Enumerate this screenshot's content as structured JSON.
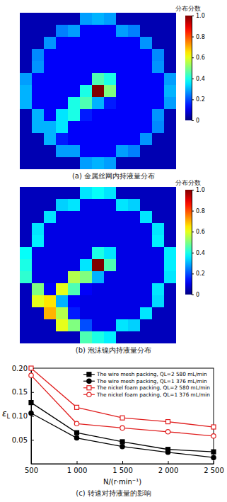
{
  "chart_data": [
    {
      "type": "heatmap",
      "title": "(a) 金属丝网内持液量分布",
      "colorbar": {
        "title": "分布分数",
        "range": [
          0,
          1
        ],
        "ticks": [
          0,
          0.2,
          0.4,
          0.6,
          0.8,
          {
            "value": 1,
            "label": "1.0"
          }
        ]
      },
      "cells": [
        [
          0.05,
          0.05,
          0.05,
          0.05,
          0.05,
          0.28,
          0.3,
          0.28,
          0.05,
          0.05,
          0.05,
          0.05,
          0.05
        ],
        [
          0.05,
          0.05,
          0.05,
          0.25,
          0.28,
          0.12,
          0.12,
          0.12,
          0.28,
          0.25,
          0.05,
          0.05,
          0.05
        ],
        [
          0.05,
          0.05,
          0.27,
          0.12,
          0.12,
          0.12,
          0.12,
          0.12,
          0.12,
          0.12,
          0.27,
          0.05,
          0.05
        ],
        [
          0.05,
          0.26,
          0.12,
          0.12,
          0.12,
          0.12,
          0.12,
          0.12,
          0.12,
          0.12,
          0.12,
          0.26,
          0.05
        ],
        [
          0.05,
          0.27,
          0.12,
          0.12,
          0.12,
          0.12,
          0.12,
          0.12,
          0.12,
          0.12,
          0.12,
          0.27,
          0.05
        ],
        [
          0.28,
          0.12,
          0.12,
          0.12,
          0.12,
          0.12,
          0.45,
          0.4,
          0.12,
          0.12,
          0.12,
          0.12,
          0.28
        ],
        [
          0.3,
          0.12,
          0.12,
          0.12,
          0.12,
          0.4,
          1.0,
          0.5,
          0.12,
          0.12,
          0.12,
          0.12,
          0.3
        ],
        [
          0.3,
          0.12,
          0.12,
          0.12,
          0.4,
          0.45,
          0.3,
          0.15,
          0.12,
          0.12,
          0.12,
          0.12,
          0.28
        ],
        [
          0.05,
          0.3,
          0.12,
          0.35,
          0.4,
          0.15,
          0.12,
          0.12,
          0.12,
          0.12,
          0.12,
          0.27,
          0.05
        ],
        [
          0.05,
          0.3,
          0.3,
          0.35,
          0.12,
          0.12,
          0.12,
          0.12,
          0.12,
          0.12,
          0.12,
          0.26,
          0.05
        ],
        [
          0.05,
          0.05,
          0.3,
          0.15,
          0.12,
          0.12,
          0.12,
          0.12,
          0.12,
          0.12,
          0.27,
          0.05,
          0.05
        ],
        [
          0.05,
          0.05,
          0.05,
          0.28,
          0.28,
          0.12,
          0.12,
          0.12,
          0.28,
          0.25,
          0.05,
          0.05,
          0.05
        ],
        [
          0.05,
          0.05,
          0.05,
          0.05,
          0.05,
          0.28,
          0.3,
          0.28,
          0.05,
          0.05,
          0.05,
          0.05,
          0.05
        ]
      ]
    },
    {
      "type": "heatmap",
      "title": "(b) 泡沫镍内持液量分布",
      "colorbar": {
        "title": "分布分数",
        "range": [
          0,
          1
        ],
        "ticks": [
          0,
          0.2,
          0.4,
          0.6,
          0.8,
          {
            "value": 1,
            "label": "1.0"
          }
        ]
      },
      "cells": [
        [
          0.06,
          0.06,
          0.06,
          0.06,
          0.06,
          0.35,
          0.38,
          0.35,
          0.06,
          0.06,
          0.06,
          0.06,
          0.06
        ],
        [
          0.06,
          0.06,
          0.06,
          0.33,
          0.35,
          0.1,
          0.1,
          0.1,
          0.35,
          0.33,
          0.06,
          0.06,
          0.06
        ],
        [
          0.06,
          0.06,
          0.35,
          0.1,
          0.1,
          0.1,
          0.1,
          0.1,
          0.1,
          0.1,
          0.35,
          0.06,
          0.06
        ],
        [
          0.06,
          0.35,
          0.1,
          0.1,
          0.1,
          0.1,
          0.1,
          0.1,
          0.1,
          0.1,
          0.1,
          0.35,
          0.06
        ],
        [
          0.06,
          0.36,
          0.1,
          0.1,
          0.1,
          0.1,
          0.1,
          0.1,
          0.1,
          0.1,
          0.1,
          0.36,
          0.06
        ],
        [
          0.38,
          0.1,
          0.1,
          0.1,
          0.1,
          0.1,
          0.4,
          0.35,
          0.1,
          0.1,
          0.1,
          0.1,
          0.36
        ],
        [
          0.4,
          0.1,
          0.1,
          0.1,
          0.1,
          0.35,
          1.0,
          0.45,
          0.1,
          0.1,
          0.1,
          0.1,
          0.36
        ],
        [
          0.42,
          0.1,
          0.1,
          0.1,
          0.55,
          0.5,
          0.3,
          0.1,
          0.1,
          0.1,
          0.1,
          0.1,
          0.35
        ],
        [
          0.06,
          0.5,
          0.12,
          0.6,
          0.45,
          0.12,
          0.1,
          0.1,
          0.1,
          0.1,
          0.1,
          0.35,
          0.06
        ],
        [
          0.06,
          0.6,
          0.65,
          0.3,
          0.12,
          0.1,
          0.1,
          0.1,
          0.1,
          0.1,
          0.1,
          0.34,
          0.06
        ],
        [
          0.06,
          0.06,
          0.7,
          0.55,
          0.15,
          0.1,
          0.1,
          0.1,
          0.1,
          0.1,
          0.35,
          0.06,
          0.06
        ],
        [
          0.06,
          0.06,
          0.06,
          0.6,
          0.5,
          0.2,
          0.1,
          0.1,
          0.35,
          0.33,
          0.06,
          0.06,
          0.06
        ],
        [
          0.06,
          0.06,
          0.06,
          0.06,
          0.06,
          0.45,
          0.4,
          0.36,
          0.06,
          0.06,
          0.06,
          0.06,
          0.06
        ]
      ]
    },
    {
      "type": "line",
      "title": "(c) 转速对持液量的影响",
      "x_label": "N/(r·min⁻¹)",
      "y_label": "εL",
      "x": [
        500,
        1000,
        1500,
        2000,
        2500
      ],
      "xlim": [
        500,
        2500
      ],
      "xticks": [
        500,
        {
          "value": 1000,
          "label": "1 000"
        },
        {
          "value": 1500,
          "label": "1 500"
        },
        {
          "value": 2000,
          "label": "2 000"
        },
        {
          "value": 2500,
          "label": "2 500"
        }
      ],
      "ylim": [
        0,
        0.2
      ],
      "yticks": [
        0.05,
        {
          "value": 0.1,
          "label": "0.10"
        },
        0.15,
        {
          "value": 0.2,
          "label": "0.20"
        }
      ],
      "grid": false,
      "legend": "upper right",
      "series": [
        {
          "name": "The wire mesh packing, QL=2 580 mL/min",
          "color": "#000000",
          "marker": "square",
          "line_style": "solid",
          "values": [
            0.128,
            0.065,
            0.046,
            0.03,
            0.025
          ]
        },
        {
          "name": "The wire mesh packing, QL=1 376 mL/min",
          "color": "#000000",
          "marker": "circle",
          "line_style": "solid",
          "values": [
            0.106,
            0.054,
            0.036,
            0.024,
            0.013
          ]
        },
        {
          "name": "The nickel foam packing, QL=2 580 mL/min",
          "color": "#e02020",
          "marker": "square-open",
          "line_style": "solid",
          "values": [
            0.2,
            0.118,
            0.096,
            0.088,
            0.077
          ]
        },
        {
          "name": "The nickel foam packing, QL=1 376 mL/min",
          "color": "#e02020",
          "marker": "circle-open",
          "line_style": "solid",
          "values": [
            0.185,
            0.084,
            0.075,
            0.067,
            0.058
          ]
        }
      ]
    }
  ]
}
